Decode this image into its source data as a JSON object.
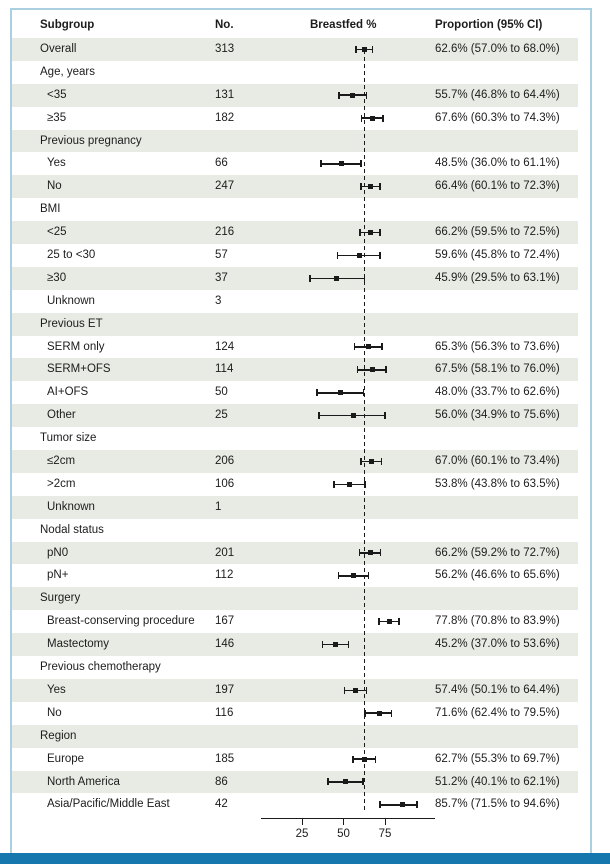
{
  "figure": {
    "columns": {
      "subgroup": "Subgroup",
      "no": "No.",
      "plot": "Breastfed %",
      "proportion": "Proportion (95% CI)"
    },
    "colors": {
      "bottom_bar": "#1577ad",
      "frame_border": "#a9cfe1",
      "row_shade": "#e8ebe3",
      "ink": "#1a1a1a"
    }
  },
  "chart_data": {
    "type": "scatter",
    "subtype": "forest-plot",
    "title": "",
    "xlabel": "Breastfed %",
    "ylabel": "Subgroup",
    "x_ticks": [
      25,
      50,
      75
    ],
    "xlim": [
      0,
      105
    ],
    "grid": false,
    "reference_line": 62.6,
    "rows": [
      {
        "label": "Overall",
        "group": false,
        "indent": false,
        "n": "313",
        "est": 62.6,
        "lo": 57.0,
        "hi": 68.0,
        "ci": "62.6% (57.0% to 68.0%)"
      },
      {
        "label": "Age, years",
        "group": true
      },
      {
        "label": "<35",
        "indent": true,
        "n": "131",
        "est": 55.7,
        "lo": 46.8,
        "hi": 64.4,
        "ci": "55.7% (46.8% to 64.4%)"
      },
      {
        "label": "≥35",
        "indent": true,
        "n": "182",
        "est": 67.6,
        "lo": 60.3,
        "hi": 74.3,
        "ci": "67.6% (60.3% to 74.3%)"
      },
      {
        "label": "Previous pregnancy",
        "group": true
      },
      {
        "label": "Yes",
        "indent": true,
        "n": "66",
        "est": 48.5,
        "lo": 36.0,
        "hi": 61.1,
        "ci": "48.5% (36.0% to 61.1%)"
      },
      {
        "label": "No",
        "indent": true,
        "n": "247",
        "est": 66.4,
        "lo": 60.1,
        "hi": 72.3,
        "ci": "66.4% (60.1% to 72.3%)"
      },
      {
        "label": "BMI",
        "group": true
      },
      {
        "label": "<25",
        "indent": true,
        "n": "216",
        "est": 66.2,
        "lo": 59.5,
        "hi": 72.5,
        "ci": "66.2% (59.5% to 72.5%)"
      },
      {
        "label": "25 to <30",
        "indent": true,
        "n": "57",
        "est": 59.6,
        "lo": 45.8,
        "hi": 72.4,
        "ci": "59.6% (45.8% to 72.4%)"
      },
      {
        "label": "≥30",
        "indent": true,
        "n": "37",
        "est": 45.9,
        "lo": 29.5,
        "hi": 63.1,
        "ci": "45.9% (29.5% to 63.1%)"
      },
      {
        "label": "Unknown",
        "indent": true,
        "n": "3"
      },
      {
        "label": "Previous ET",
        "group": true
      },
      {
        "label": "SERM only",
        "indent": true,
        "n": "124",
        "est": 65.3,
        "lo": 56.3,
        "hi": 73.6,
        "ci": "65.3% (56.3% to 73.6%)"
      },
      {
        "label": "SERM+OFS",
        "indent": true,
        "n": "114",
        "est": 67.5,
        "lo": 58.1,
        "hi": 76.0,
        "ci": "67.5% (58.1% to 76.0%)"
      },
      {
        "label": "AI+OFS",
        "indent": true,
        "n": "50",
        "est": 48.0,
        "lo": 33.7,
        "hi": 62.6,
        "ci": "48.0% (33.7% to 62.6%)"
      },
      {
        "label": "Other",
        "indent": true,
        "n": "25",
        "est": 56.0,
        "lo": 34.9,
        "hi": 75.6,
        "ci": "56.0% (34.9% to 75.6%)"
      },
      {
        "label": "Tumor size",
        "group": true
      },
      {
        "label": "≤2cm",
        "indent": true,
        "n": "206",
        "est": 67.0,
        "lo": 60.1,
        "hi": 73.4,
        "ci": "67.0% (60.1% to 73.4%)"
      },
      {
        "label": ">2cm",
        "indent": true,
        "n": "106",
        "est": 53.8,
        "lo": 43.8,
        "hi": 63.5,
        "ci": "53.8% (43.8% to 63.5%)"
      },
      {
        "label": "Unknown",
        "indent": true,
        "n": "1"
      },
      {
        "label": "Nodal status",
        "group": true
      },
      {
        "label": "pN0",
        "indent": true,
        "n": "201",
        "est": 66.2,
        "lo": 59.2,
        "hi": 72.7,
        "ci": "66.2% (59.2% to 72.7%)"
      },
      {
        "label": "pN+",
        "indent": true,
        "n": "112",
        "est": 56.2,
        "lo": 46.6,
        "hi": 65.6,
        "ci": "56.2% (46.6% to 65.6%)"
      },
      {
        "label": "Surgery",
        "group": true
      },
      {
        "label": "Breast-conserving procedure",
        "indent": true,
        "n": "167",
        "est": 77.8,
        "lo": 70.8,
        "hi": 83.9,
        "ci": "77.8% (70.8% to 83.9%)"
      },
      {
        "label": "Mastectomy",
        "indent": true,
        "n": "146",
        "est": 45.2,
        "lo": 37.0,
        "hi": 53.6,
        "ci": "45.2% (37.0% to 53.6%)"
      },
      {
        "label": "Previous chemotherapy",
        "group": true
      },
      {
        "label": "Yes",
        "indent": true,
        "n": "197",
        "est": 57.4,
        "lo": 50.1,
        "hi": 64.4,
        "ci": "57.4% (50.1% to 64.4%)"
      },
      {
        "label": "No",
        "indent": true,
        "n": "116",
        "est": 71.6,
        "lo": 62.4,
        "hi": 79.5,
        "ci": "71.6% (62.4% to 79.5%)"
      },
      {
        "label": "Region",
        "group": true
      },
      {
        "label": "Europe",
        "indent": true,
        "n": "185",
        "est": 62.7,
        "lo": 55.3,
        "hi": 69.7,
        "ci": "62.7% (55.3% to 69.7%)"
      },
      {
        "label": "North America",
        "indent": true,
        "n": "86",
        "est": 51.2,
        "lo": 40.1,
        "hi": 62.1,
        "ci": "51.2% (40.1% to 62.1%)"
      },
      {
        "label": "Asia/Pacific/Middle East",
        "indent": true,
        "n": "42",
        "est": 85.7,
        "lo": 71.5,
        "hi": 94.6,
        "ci": "85.7% (71.5% to 94.6%)"
      }
    ]
  }
}
